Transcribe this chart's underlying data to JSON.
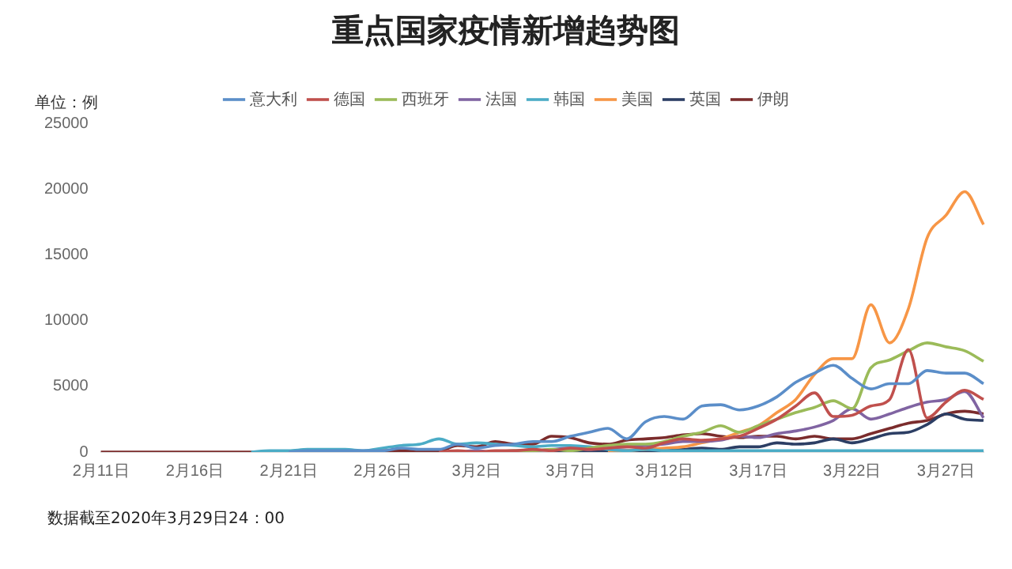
{
  "chart_data": {
    "type": "line",
    "title": "重点国家疫情新增趋势图",
    "ylabel": "单位：例",
    "annotations": [
      "数据截至2020年3月29日24：00"
    ],
    "categories": [
      "2月11日",
      null,
      null,
      null,
      null,
      "2月16日",
      null,
      null,
      null,
      null,
      "2月21日",
      null,
      null,
      null,
      null,
      "2月26日",
      null,
      null,
      null,
      null,
      "3月2日",
      null,
      null,
      null,
      null,
      "3月7日",
      null,
      null,
      null,
      null,
      "3月12日",
      null,
      null,
      null,
      null,
      "3月17日",
      null,
      null,
      null,
      null,
      "3月22日",
      null,
      null,
      null,
      null,
      "3月27日",
      null,
      null
    ],
    "series": [
      {
        "name": "意大利",
        "color": "#5b8ec9",
        "values": [
          null,
          null,
          null,
          null,
          null,
          null,
          null,
          null,
          null,
          null,
          0,
          100,
          100,
          100,
          100,
          100,
          300,
          200,
          200,
          600,
          300,
          500,
          600,
          800,
          800,
          1200,
          1500,
          1800,
          1000,
          2300,
          2700,
          2500,
          3500,
          3600,
          3200,
          3500,
          4200,
          5300,
          6000,
          6600,
          5600,
          4800,
          5200,
          5200,
          6200,
          6000,
          6000,
          5200
        ]
      },
      {
        "name": "德国",
        "color": "#c0504d",
        "values": [
          null,
          null,
          null,
          null,
          null,
          null,
          null,
          null,
          null,
          null,
          null,
          null,
          null,
          null,
          null,
          null,
          null,
          null,
          0,
          100,
          0,
          100,
          100,
          200,
          100,
          300,
          200,
          300,
          400,
          300,
          700,
          1000,
          900,
          1000,
          1200,
          1800,
          2500,
          3500,
          4500,
          2700,
          2800,
          3500,
          4000,
          7800,
          2600,
          3800,
          4700,
          4000
        ]
      },
      {
        "name": "西班牙",
        "color": "#9bbb59",
        "values": [
          null,
          null,
          null,
          null,
          null,
          null,
          null,
          null,
          null,
          null,
          null,
          null,
          null,
          null,
          null,
          null,
          null,
          null,
          null,
          null,
          null,
          0,
          100,
          100,
          200,
          100,
          300,
          500,
          600,
          600,
          800,
          1200,
          1500,
          2000,
          1500,
          2000,
          2500,
          3000,
          3400,
          3900,
          3300,
          6400,
          7000,
          7700,
          8300,
          8000,
          7700,
          6900
        ]
      },
      {
        "name": "法国",
        "color": "#8064a2",
        "values": [
          null,
          null,
          null,
          null,
          null,
          null,
          null,
          null,
          null,
          null,
          null,
          null,
          null,
          null,
          null,
          null,
          null,
          null,
          null,
          0,
          100,
          0,
          100,
          100,
          200,
          300,
          200,
          300,
          400,
          500,
          600,
          800,
          800,
          900,
          1200,
          1100,
          1400,
          1600,
          1900,
          2400,
          3300,
          2500,
          2900,
          3400,
          3800,
          4000,
          4600,
          2600
        ]
      },
      {
        "name": "韩国",
        "color": "#4bacc6",
        "values": [
          null,
          null,
          null,
          null,
          null,
          null,
          null,
          null,
          0,
          100,
          100,
          200,
          200,
          200,
          100,
          300,
          500,
          600,
          1000,
          600,
          700,
          600,
          500,
          400,
          500,
          500,
          400,
          200,
          100,
          200,
          100,
          100,
          100,
          100,
          100,
          100,
          100,
          100,
          100,
          100,
          100,
          100,
          100,
          100,
          100,
          100,
          100,
          100
        ]
      },
      {
        "name": "美国",
        "color": "#f79646",
        "values": [
          null,
          null,
          null,
          null,
          null,
          null,
          null,
          null,
          null,
          null,
          null,
          null,
          null,
          null,
          null,
          null,
          null,
          null,
          null,
          null,
          null,
          null,
          null,
          null,
          null,
          null,
          null,
          0,
          100,
          200,
          300,
          400,
          700,
          1000,
          1500,
          2000,
          3000,
          4000,
          5900,
          7100,
          7100,
          11200,
          8300,
          10900,
          16300,
          18000,
          19800,
          17300
        ]
      },
      {
        "name": "英国",
        "color": "#2c3e64",
        "values": [
          null,
          null,
          null,
          null,
          null,
          null,
          null,
          null,
          null,
          null,
          null,
          null,
          null,
          null,
          null,
          null,
          null,
          null,
          null,
          null,
          null,
          null,
          null,
          null,
          0,
          100,
          0,
          100,
          100,
          100,
          100,
          200,
          300,
          200,
          400,
          400,
          700,
          600,
          700,
          1000,
          700,
          1000,
          1400,
          1500,
          2100,
          2900,
          2500,
          2400
        ]
      },
      {
        "name": "伊朗",
        "color": "#7b2c2c",
        "values": [
          0,
          0,
          0,
          0,
          0,
          0,
          0,
          0,
          0,
          0,
          0,
          0,
          100,
          0,
          0,
          100,
          100,
          100,
          100,
          500,
          400,
          800,
          600,
          600,
          1200,
          1100,
          700,
          600,
          900,
          1000,
          1100,
          1300,
          1400,
          1200,
          1100,
          1200,
          1200,
          1000,
          1200,
          1000,
          1000,
          1400,
          1800,
          2200,
          2400,
          2900,
          3100,
          2900
        ]
      }
    ],
    "ylim": [
      0,
      25000
    ],
    "yticks": [
      0,
      5000,
      10000,
      15000,
      20000,
      25000
    ],
    "grid": false,
    "legend": "top",
    "marker": "none",
    "line_style": "solid"
  }
}
